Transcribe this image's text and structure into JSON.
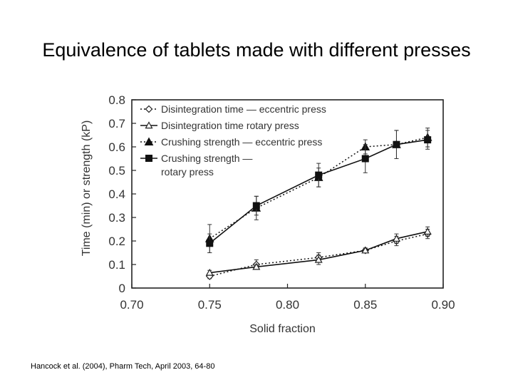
{
  "slide": {
    "title": "Equivalence of tablets made with different presses",
    "citation": "Hancock et al. (2004), Pharm Tech, April 2003, 64-80"
  },
  "chart_data": {
    "type": "line",
    "title": "",
    "xlabel": "Solid fraction",
    "ylabel": "Time (min) or strength (kP)",
    "xlim": [
      0.7,
      0.9
    ],
    "ylim": [
      0,
      0.8
    ],
    "xticks": [
      "0.70",
      "0.75",
      "0.80",
      "0.85",
      "0.90"
    ],
    "yticks": [
      "0",
      "0.1",
      "0.2",
      "0.3",
      "0.4",
      "0.5",
      "0.6",
      "0.7",
      "0.8"
    ],
    "legend_position": "top-left",
    "series": [
      {
        "name": "Disintegration time — eccentric press",
        "legend_lines": [
          "Disintegration time — eccentric press"
        ],
        "marker": "open-diamond",
        "line": "dotted",
        "x": [
          0.75,
          0.78,
          0.82,
          0.85,
          0.87,
          0.89
        ],
        "y": [
          0.05,
          0.1,
          0.13,
          0.16,
          0.2,
          0.23
        ],
        "err": [
          0.01,
          0.02,
          0.02,
          0.01,
          0.02,
          0.02
        ]
      },
      {
        "name": "Disintegration time rotary press",
        "legend_lines": [
          "Disintegration time      rotary press"
        ],
        "marker": "open-triangle",
        "line": "solid",
        "x": [
          0.75,
          0.78,
          0.82,
          0.85,
          0.87,
          0.89
        ],
        "y": [
          0.065,
          0.09,
          0.12,
          0.16,
          0.21,
          0.24
        ],
        "err": [
          0.01,
          0.01,
          0.02,
          0.01,
          0.02,
          0.02
        ]
      },
      {
        "name": "Crushing strength — eccentric press",
        "legend_lines": [
          "Crushing strength — eccentric press"
        ],
        "marker": "filled-triangle",
        "line": "dotted",
        "x": [
          0.75,
          0.78,
          0.82,
          0.85,
          0.87,
          0.89
        ],
        "y": [
          0.21,
          0.34,
          0.47,
          0.6,
          0.61,
          0.64
        ],
        "err": [
          0.06,
          0.05,
          0.04,
          0.03,
          0.06,
          0.04
        ]
      },
      {
        "name": "Crushing strength — rotary press",
        "legend_lines": [
          "Crushing strength —",
          "rotary press"
        ],
        "marker": "filled-square",
        "line": "solid",
        "x": [
          0.75,
          0.78,
          0.82,
          0.85,
          0.87,
          0.89
        ],
        "y": [
          0.19,
          0.35,
          0.48,
          0.55,
          0.61,
          0.63
        ],
        "err": [
          0.04,
          0.04,
          0.05,
          0.06,
          0.06,
          0.04
        ]
      }
    ]
  }
}
